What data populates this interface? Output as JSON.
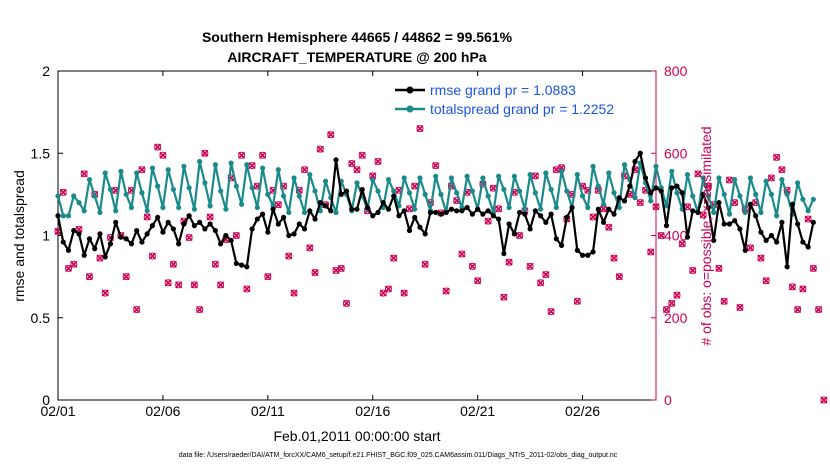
{
  "colors": {
    "rmse": "#000000",
    "spread": "#1a8a8a",
    "obs": "#cc0055",
    "legend_text": "#1a55e6"
  },
  "chart_data": {
    "type": "line",
    "title": "Southern Hemisphere 44665 / 44862 = 99.561%",
    "subtitle": "AIRCRAFT_TEMPERATURE @ 200 hPa",
    "xlabel": "Feb.01,2011 00:00:00 start",
    "ylabel": "rmse and totalspread",
    "ylabel_right": "# of obs: o=possible; ×=assimilated",
    "footer": "data file: /Users/raeder/DAI/ATM_forcXX/CAM6_setup/f.e21.FHIST_BGC.f09_025.CAM6assim.011/Diags_NTrS_2011-02/obs_diag_output.nc",
    "xlim": [
      0,
      28.5
    ],
    "ylim": [
      0,
      2
    ],
    "ylim_right": [
      0,
      800
    ],
    "xtick_values": [
      0,
      5,
      10,
      15,
      20,
      25
    ],
    "xtick_labels": [
      "02/01",
      "02/06",
      "02/11",
      "02/16",
      "02/21",
      "02/26"
    ],
    "ytick_values": [
      0,
      0.5,
      1,
      1.5,
      2
    ],
    "ytick_labels": [
      "0",
      "0.5",
      "1",
      "1.5",
      "2"
    ],
    "ytick_right_values": [
      0,
      200,
      400,
      600,
      800
    ],
    "ytick_right_labels": [
      "0",
      "200",
      "400",
      "600",
      "800"
    ],
    "x_step_days": 0.25,
    "series": [
      {
        "name": "rmse grand pr = 1.0883",
        "axis": "left",
        "values": [
          1.12,
          0.96,
          0.91,
          1.03,
          1.01,
          0.88,
          0.98,
          0.92,
          1.01,
          0.87,
          0.95,
          1.08,
          0.99,
          0.98,
          0.95,
          1.03,
          0.96,
          1.01,
          1.06,
          1.11,
          1.02,
          1.08,
          1.04,
          0.95,
          1.07,
          1.12,
          1.06,
          1.08,
          1.04,
          1.07,
          1.03,
          0.95,
          1.0,
          0.97,
          0.83,
          0.82,
          0.81,
          1.04,
          1.1,
          1.13,
          1.02,
          1.16,
          1.07,
          1.11,
          1.0,
          1.01,
          1.07,
          1.04,
          1.15,
          1.1,
          1.2,
          1.18,
          1.15,
          1.46,
          1.25,
          1.27,
          1.16,
          1.16,
          1.28,
          1.17,
          1.12,
          1.14,
          1.2,
          1.16,
          1.24,
          1.12,
          1.15,
          1.03,
          1.11,
          1.05,
          1.01,
          1.14,
          1.14,
          1.13,
          1.14,
          1.16,
          1.15,
          1.15,
          1.17,
          1.13,
          1.16,
          1.13,
          1.15,
          1.12,
          1.1,
          0.89,
          1.07,
          1.01,
          1.14,
          1.13,
          1.04,
          1.15,
          1.12,
          1.08,
          1.13,
          0.98,
          0.94,
          1.11,
          1.17,
          0.91,
          0.88,
          0.88,
          0.9,
          1.16,
          1.08,
          1.16,
          1.13,
          1.23,
          1.21,
          1.3,
          1.45,
          1.5,
          1.35,
          1.26,
          1.29,
          1.27,
          1.06,
          1.29,
          1.3,
          1.26,
          0.99,
          1.15,
          1.14,
          1.25,
          1.17,
          0.97,
          1.2,
          1.07,
          1.07,
          1.09,
          1.04,
          0.91,
          1.19,
          1.12,
          1.02,
          0.97,
          1.0,
          0.96,
          1.08,
          0.81,
          1.19,
          1.07,
          0.96,
          0.93,
          1.08
        ]
      },
      {
        "name": "totalspread grand pr = 1.2252",
        "axis": "left",
        "values": [
          1.24,
          1.12,
          1.12,
          1.24,
          1.2,
          1.15,
          1.34,
          1.24,
          1.14,
          1.38,
          1.28,
          1.15,
          1.39,
          1.25,
          1.17,
          1.38,
          1.26,
          1.15,
          1.41,
          1.3,
          1.17,
          1.4,
          1.28,
          1.17,
          1.42,
          1.29,
          1.16,
          1.45,
          1.32,
          1.18,
          1.43,
          1.27,
          1.16,
          1.44,
          1.3,
          1.19,
          1.43,
          1.29,
          1.17,
          1.41,
          1.25,
          1.18,
          1.4,
          1.24,
          1.14,
          1.35,
          1.24,
          1.14,
          1.37,
          1.27,
          1.15,
          1.33,
          1.23,
          1.14,
          1.33,
          1.25,
          1.15,
          1.32,
          1.24,
          1.16,
          1.34,
          1.27,
          1.17,
          1.34,
          1.27,
          1.18,
          1.35,
          1.26,
          1.16,
          1.35,
          1.25,
          1.15,
          1.36,
          1.25,
          1.14,
          1.35,
          1.26,
          1.17,
          1.36,
          1.27,
          1.16,
          1.35,
          1.24,
          1.14,
          1.36,
          1.28,
          1.17,
          1.36,
          1.27,
          1.16,
          1.37,
          1.26,
          1.16,
          1.38,
          1.28,
          1.17,
          1.39,
          1.27,
          1.17,
          1.37,
          1.24,
          1.17,
          1.42,
          1.3,
          1.19,
          1.38,
          1.26,
          1.17,
          1.43,
          1.34,
          1.23,
          1.44,
          1.32,
          1.21,
          1.42,
          1.29,
          1.18,
          1.39,
          1.26,
          1.16,
          1.37,
          1.24,
          1.14,
          1.35,
          1.24,
          1.14,
          1.35,
          1.25,
          1.13,
          1.34,
          1.24,
          1.14,
          1.35,
          1.25,
          1.14,
          1.33,
          1.25,
          1.12,
          1.34,
          1.25,
          1.13,
          1.32,
          1.22,
          1.15,
          1.22
        ]
      }
    ],
    "obs_possible": {
      "name": "# of obs possible",
      "axis": "right",
      "marker": "o",
      "values": [
        410,
        505,
        320,
        330,
        415,
        550,
        300,
        500,
        345,
        260,
        395,
        510,
        400,
        300,
        510,
        220,
        560,
        445,
        350,
        615,
        595,
        285,
        330,
        280,
        435,
        395,
        280,
        220,
        600,
        445,
        330,
        280,
        390,
        540,
        400,
        595,
        270,
        570,
        520,
        595,
        300,
        510,
        475,
        520,
        350,
        260,
        510,
        560,
        370,
        310,
        610,
        475,
        645,
        315,
        320,
        235,
        575,
        560,
        595,
        460,
        545,
        580,
        260,
        270,
        345,
        510,
        260,
        465,
        520,
        660,
        330,
        480,
        570,
        455,
        265,
        520,
        485,
        355,
        505,
        325,
        290,
        525,
        435,
        515,
        465,
        250,
        335,
        505,
        400,
        460,
        325,
        545,
        285,
        305,
        215,
        560,
        565,
        440,
        500,
        240,
        520,
        510,
        445,
        510,
        465,
        420,
        345,
        300,
        545,
        500,
        560,
        480,
        510,
        360,
        470,
        400,
        220,
        235,
        255,
        380,
        470,
        315,
        550,
        450,
        520,
        475,
        320,
        240,
        535,
        480,
        225,
        465,
        370,
        480,
        345,
        290,
        540,
        590,
        560,
        510,
        275,
        220,
        270,
        440,
        320,
        220,
        0
      ]
    },
    "obs_assimilated": {
      "name": "# of obs assimilated",
      "axis": "right",
      "marker": "x",
      "values": [
        410,
        505,
        320,
        330,
        415,
        550,
        300,
        500,
        345,
        260,
        395,
        510,
        400,
        300,
        510,
        220,
        560,
        445,
        350,
        615,
        595,
        285,
        330,
        280,
        435,
        395,
        280,
        220,
        600,
        445,
        330,
        280,
        390,
        540,
        400,
        595,
        270,
        570,
        520,
        595,
        300,
        510,
        475,
        520,
        350,
        260,
        510,
        560,
        370,
        310,
        610,
        475,
        645,
        315,
        320,
        235,
        575,
        560,
        595,
        460,
        545,
        580,
        260,
        270,
        345,
        510,
        260,
        465,
        520,
        660,
        330,
        480,
        570,
        455,
        265,
        520,
        485,
        355,
        505,
        325,
        290,
        525,
        435,
        515,
        465,
        250,
        335,
        505,
        400,
        460,
        325,
        545,
        285,
        305,
        215,
        560,
        565,
        440,
        500,
        240,
        520,
        510,
        445,
        510,
        465,
        420,
        345,
        300,
        545,
        500,
        560,
        480,
        510,
        360,
        470,
        400,
        220,
        235,
        255,
        380,
        470,
        315,
        550,
        450,
        520,
        475,
        320,
        240,
        535,
        480,
        225,
        465,
        370,
        480,
        345,
        290,
        540,
        590,
        560,
        510,
        275,
        220,
        270,
        440,
        320,
        220,
        0
      ]
    }
  }
}
